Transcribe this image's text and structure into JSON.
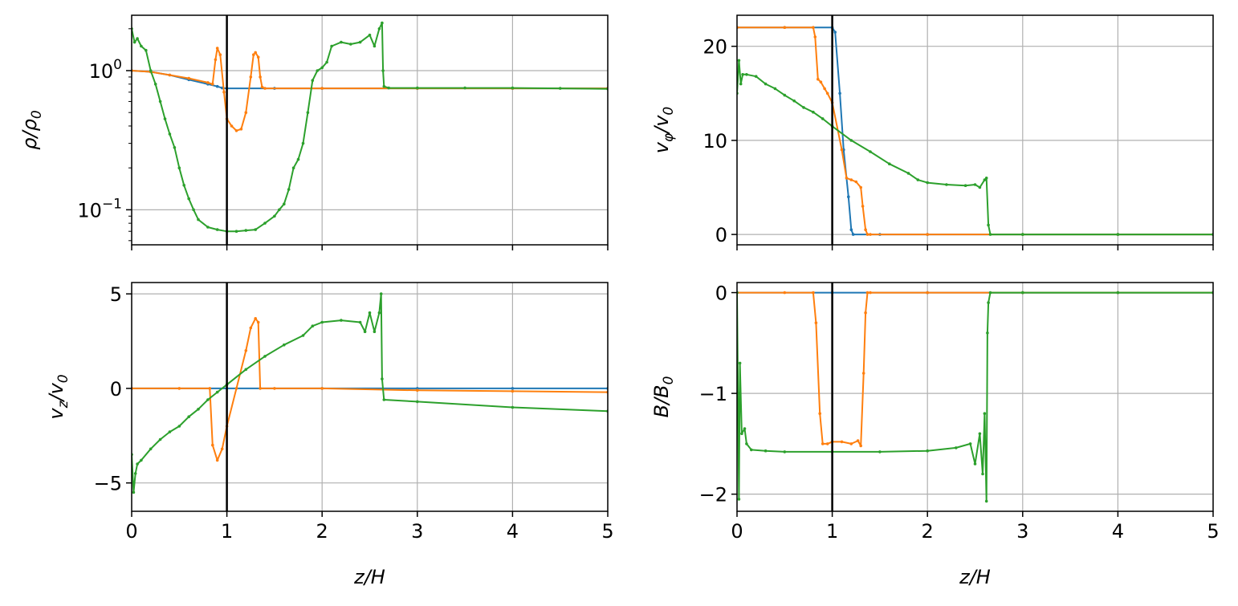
{
  "figure": {
    "xlabel": "z/H",
    "colors": {
      "blue": "#1f77b4",
      "orange": "#ff7f0e",
      "green": "#2ca02c",
      "grid": "#b0b0b0",
      "axis": "#000000"
    },
    "vline_x": 1
  },
  "chart_data": [
    {
      "type": "line",
      "panel": "top-left",
      "ylabel": "ρ/ρ0",
      "yscale": "log",
      "xlim": [
        0,
        5
      ],
      "ylim": [
        0.056,
        2.5
      ],
      "xticks": [
        0,
        1,
        2,
        3,
        4,
        5
      ],
      "yticks": [
        0.1,
        1
      ],
      "ytick_labels": [
        "10^−1",
        "10^0"
      ],
      "show_xticklabels": false,
      "grid": true,
      "series": [
        {
          "color": "blue",
          "x": [
            0,
            0.2,
            0.4,
            0.6,
            0.8,
            0.9,
            0.95,
            1.0,
            1.5,
            2,
            3,
            4,
            5
          ],
          "y": [
            1.0,
            0.98,
            0.93,
            0.86,
            0.8,
            0.77,
            0.75,
            0.745,
            0.745,
            0.745,
            0.745,
            0.745,
            0.745
          ]
        },
        {
          "color": "orange",
          "x": [
            0,
            0.2,
            0.4,
            0.6,
            0.8,
            0.85,
            0.88,
            0.9,
            0.93,
            0.97,
            1.0,
            1.05,
            1.1,
            1.15,
            1.2,
            1.25,
            1.28,
            1.3,
            1.33,
            1.35,
            1.37,
            1.4,
            2,
            3,
            4,
            5
          ],
          "y": [
            1.0,
            0.98,
            0.93,
            0.88,
            0.82,
            0.8,
            1.2,
            1.45,
            1.3,
            0.7,
            0.45,
            0.4,
            0.37,
            0.38,
            0.5,
            0.9,
            1.3,
            1.35,
            1.25,
            0.9,
            0.76,
            0.745,
            0.745,
            0.745,
            0.745,
            0.745
          ]
        },
        {
          "color": "green",
          "x": [
            0,
            0.03,
            0.06,
            0.1,
            0.15,
            0.2,
            0.25,
            0.3,
            0.35,
            0.4,
            0.45,
            0.5,
            0.55,
            0.6,
            0.65,
            0.7,
            0.8,
            0.9,
            1.0,
            1.1,
            1.2,
            1.3,
            1.4,
            1.5,
            1.55,
            1.6,
            1.65,
            1.7,
            1.75,
            1.8,
            1.85,
            1.9,
            1.95,
            2.0,
            2.05,
            2.1,
            2.2,
            2.3,
            2.4,
            2.5,
            2.55,
            2.6,
            2.63,
            2.64,
            2.65,
            2.7,
            3,
            3.5,
            4,
            4.5,
            5
          ],
          "y": [
            2.0,
            1.6,
            1.7,
            1.5,
            1.4,
            1.0,
            0.8,
            0.6,
            0.45,
            0.35,
            0.28,
            0.2,
            0.15,
            0.12,
            0.1,
            0.085,
            0.075,
            0.072,
            0.07,
            0.07,
            0.071,
            0.072,
            0.08,
            0.09,
            0.1,
            0.11,
            0.14,
            0.2,
            0.23,
            0.3,
            0.5,
            0.85,
            1.0,
            1.05,
            1.15,
            1.5,
            1.6,
            1.55,
            1.6,
            1.8,
            1.5,
            2.0,
            2.2,
            1.0,
            0.77,
            0.75,
            0.75,
            0.75,
            0.75,
            0.745,
            0.74
          ]
        }
      ]
    },
    {
      "type": "line",
      "panel": "top-right",
      "ylabel": "vφ/v0",
      "yscale": "linear",
      "xlim": [
        0,
        5
      ],
      "ylim": [
        -1.1,
        23.3
      ],
      "xticks": [
        0,
        1,
        2,
        3,
        4,
        5
      ],
      "yticks": [
        0,
        10,
        20
      ],
      "show_xticklabels": false,
      "grid": true,
      "series": [
        {
          "color": "blue",
          "x": [
            0,
            0.5,
            1.0,
            1.03,
            1.08,
            1.12,
            1.17,
            1.2,
            1.22,
            1.5,
            2,
            3,
            4,
            5
          ],
          "y": [
            22,
            22,
            22,
            21.5,
            15,
            9,
            4,
            0.5,
            0,
            0,
            0,
            0,
            0,
            0
          ]
        },
        {
          "color": "orange",
          "x": [
            0,
            0.5,
            0.8,
            0.82,
            0.85,
            0.88,
            0.92,
            0.95,
            1.0,
            1.1,
            1.15,
            1.2,
            1.25,
            1.3,
            1.32,
            1.35,
            1.37,
            1.4,
            2,
            3,
            4,
            5
          ],
          "y": [
            22,
            22,
            22,
            21,
            16.5,
            16.2,
            15.5,
            15,
            14,
            9,
            6,
            5.8,
            5.6,
            5,
            3,
            0.5,
            0,
            0,
            0,
            0,
            0,
            0
          ]
        },
        {
          "color": "green",
          "x": [
            0,
            0.02,
            0.04,
            0.06,
            0.1,
            0.2,
            0.3,
            0.4,
            0.5,
            0.6,
            0.7,
            0.8,
            0.9,
            1.0,
            1.2,
            1.4,
            1.6,
            1.8,
            1.9,
            2.0,
            2.2,
            2.4,
            2.5,
            2.55,
            2.6,
            2.62,
            2.64,
            2.66,
            3,
            4,
            5
          ],
          "y": [
            15,
            18.5,
            16,
            17,
            17,
            16.8,
            16,
            15.5,
            14.8,
            14.2,
            13.5,
            13,
            12.3,
            11.5,
            10,
            8.8,
            7.5,
            6.5,
            5.8,
            5.5,
            5.3,
            5.2,
            5.3,
            5.0,
            5.8,
            6,
            1,
            0,
            0,
            0,
            0
          ]
        }
      ]
    },
    {
      "type": "line",
      "panel": "bottom-left",
      "ylabel": "vz/v0",
      "yscale": "linear",
      "xlim": [
        0,
        5
      ],
      "ylim": [
        -6.5,
        5.6
      ],
      "xticks": [
        0,
        1,
        2,
        3,
        4,
        5
      ],
      "xtick_labels": [
        "0",
        "1",
        "2",
        "3",
        "4",
        "5"
      ],
      "yticks": [
        -5,
        0,
        5
      ],
      "ytick_labels": [
        "−5",
        "0",
        "5"
      ],
      "show_xticklabels": true,
      "grid": true,
      "series": [
        {
          "color": "blue",
          "x": [
            0,
            1,
            2,
            3,
            4,
            5
          ],
          "y": [
            0,
            0,
            0,
            0,
            0,
            0
          ]
        },
        {
          "color": "orange",
          "x": [
            0,
            0.5,
            0.82,
            0.85,
            0.9,
            0.95,
            1.0,
            1.1,
            1.2,
            1.25,
            1.3,
            1.33,
            1.35,
            1.5,
            2,
            3,
            4,
            5
          ],
          "y": [
            0,
            0,
            0,
            -3,
            -3.8,
            -3.2,
            -2,
            0,
            2,
            3.2,
            3.7,
            3.5,
            0,
            0,
            0,
            -0.1,
            -0.15,
            -0.2
          ]
        },
        {
          "color": "green",
          "x": [
            0,
            0.02,
            0.04,
            0.06,
            0.1,
            0.2,
            0.3,
            0.4,
            0.5,
            0.6,
            0.7,
            0.8,
            0.9,
            1.0,
            1.2,
            1.4,
            1.6,
            1.8,
            1.9,
            2.0,
            2.2,
            2.4,
            2.45,
            2.5,
            2.55,
            2.6,
            2.62,
            2.63,
            2.65,
            3,
            4,
            5
          ],
          "y": [
            -3.5,
            -5.5,
            -4.5,
            -4,
            -3.8,
            -3.2,
            -2.7,
            -2.3,
            -2,
            -1.5,
            -1.1,
            -0.6,
            -0.2,
            0.2,
            1.0,
            1.7,
            2.3,
            2.8,
            3.3,
            3.5,
            3.6,
            3.5,
            3.0,
            4.0,
            3.0,
            4.0,
            5.0,
            0.5,
            -0.6,
            -0.7,
            -1.0,
            -1.2
          ]
        }
      ]
    },
    {
      "type": "line",
      "panel": "bottom-right",
      "ylabel": "B/B0",
      "yscale": "linear",
      "xlim": [
        0,
        5
      ],
      "ylim": [
        -2.17,
        0.1
      ],
      "xticks": [
        0,
        1,
        2,
        3,
        4,
        5
      ],
      "xtick_labels": [
        "0",
        "1",
        "2",
        "3",
        "4",
        "5"
      ],
      "yticks": [
        -2,
        -1,
        0
      ],
      "ytick_labels": [
        "−2",
        "−1",
        "0"
      ],
      "show_xticklabels": true,
      "grid": true,
      "series": [
        {
          "color": "blue",
          "x": [
            0,
            1,
            2,
            3,
            4,
            5
          ],
          "y": [
            0,
            0,
            0,
            0,
            0,
            0
          ]
        },
        {
          "color": "orange",
          "x": [
            0,
            0.5,
            0.8,
            0.83,
            0.87,
            0.9,
            0.95,
            1.0,
            1.1,
            1.2,
            1.27,
            1.3,
            1.33,
            1.35,
            1.37,
            1.4,
            2,
            3,
            4,
            5
          ],
          "y": [
            0,
            0,
            0,
            -0.3,
            -1.2,
            -1.5,
            -1.5,
            -1.48,
            -1.48,
            -1.5,
            -1.47,
            -1.52,
            -0.8,
            -0.2,
            0,
            0,
            0,
            0,
            0,
            0
          ]
        },
        {
          "color": "green",
          "x": [
            0,
            0.01,
            0.02,
            0.03,
            0.05,
            0.08,
            0.1,
            0.15,
            0.3,
            0.5,
            1.0,
            1.5,
            2.0,
            2.3,
            2.45,
            2.5,
            2.55,
            2.58,
            2.6,
            2.62,
            2.63,
            2.64,
            2.66,
            3,
            4,
            5
          ],
          "y": [
            0,
            -1.0,
            -2.05,
            -0.7,
            -1.4,
            -1.35,
            -1.5,
            -1.56,
            -1.57,
            -1.58,
            -1.58,
            -1.58,
            -1.57,
            -1.54,
            -1.5,
            -1.7,
            -1.4,
            -1.8,
            -1.2,
            -2.07,
            -0.4,
            -0.1,
            0,
            0,
            0,
            0
          ]
        }
      ]
    }
  ]
}
